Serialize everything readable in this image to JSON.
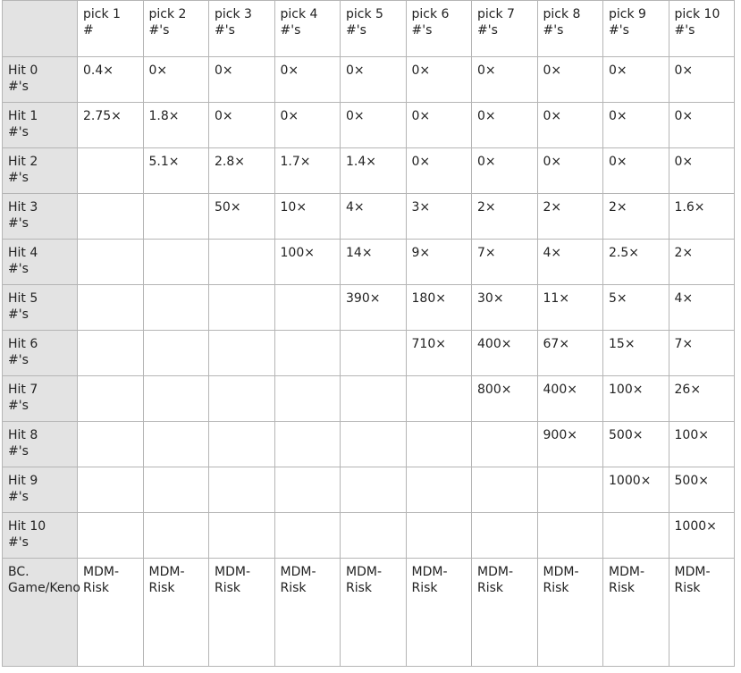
{
  "table": {
    "columns": [
      "pick 1 #",
      "pick 2 #'s",
      "pick 3 #'s",
      "pick 4 #'s",
      "pick 5 #'s",
      "pick 6 #'s",
      "pick 7 #'s",
      "pick 8 #'s",
      "pick 9 #'s",
      "pick 10 #'s"
    ],
    "rows": [
      {
        "label": "Hit 0 #'s",
        "cells": [
          "0.4×",
          "0×",
          "0×",
          "0×",
          "0×",
          "0×",
          "0×",
          "0×",
          "0×",
          "0×"
        ]
      },
      {
        "label": "Hit 1 #'s",
        "cells": [
          "2.75×",
          "1.8×",
          "0×",
          "0×",
          "0×",
          "0×",
          "0×",
          "0×",
          "0×",
          "0×"
        ]
      },
      {
        "label": "Hit 2 #'s",
        "cells": [
          null,
          "5.1×",
          "2.8×",
          "1.7×",
          "1.4×",
          "0×",
          "0×",
          "0×",
          "0×",
          "0×"
        ]
      },
      {
        "label": "Hit 3 #'s",
        "cells": [
          null,
          null,
          "50×",
          "10×",
          "4×",
          "3×",
          "2×",
          "2×",
          "2×",
          "1.6×"
        ]
      },
      {
        "label": "Hit 4 #'s",
        "cells": [
          null,
          null,
          null,
          "100×",
          "14×",
          "9×",
          "7×",
          "4×",
          "2.5×",
          "2×"
        ]
      },
      {
        "label": "Hit 5 #'s",
        "cells": [
          null,
          null,
          null,
          null,
          "390×",
          "180×",
          "30×",
          "11×",
          "5×",
          "4×"
        ]
      },
      {
        "label": "Hit 6 #'s",
        "cells": [
          null,
          null,
          null,
          null,
          null,
          "710×",
          "400×",
          "67×",
          "15×",
          "7×"
        ]
      },
      {
        "label": "Hit 7 #'s",
        "cells": [
          null,
          null,
          null,
          null,
          null,
          null,
          "800×",
          "400×",
          "100×",
          "26×"
        ]
      },
      {
        "label": "Hit 8 #'s",
        "cells": [
          null,
          null,
          null,
          null,
          null,
          null,
          null,
          "900×",
          "500×",
          "100×"
        ]
      },
      {
        "label": "Hit 9 #'s",
        "cells": [
          null,
          null,
          null,
          null,
          null,
          null,
          null,
          null,
          "1000×",
          "500×"
        ]
      },
      {
        "label": "Hit 10 #'s",
        "cells": [
          null,
          null,
          null,
          null,
          null,
          null,
          null,
          null,
          null,
          "1000×"
        ]
      },
      {
        "label": "BC. Game/Keno",
        "cells": [
          "MDM-Risk",
          "MDM-Risk",
          "MDM-Risk",
          "MDM-Risk",
          "MDM-Risk",
          "MDM-Risk",
          "MDM-Risk",
          "MDM-Risk",
          "MDM-Risk",
          "MDM-Risk"
        ]
      }
    ]
  }
}
